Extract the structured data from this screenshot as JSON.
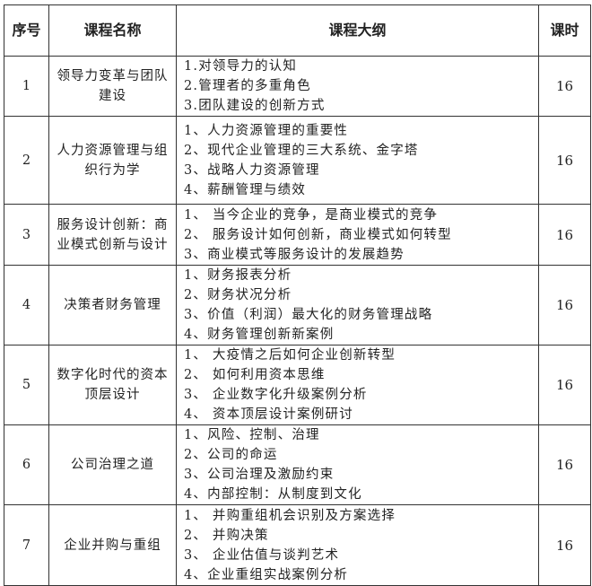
{
  "headers": [
    "序号",
    "课程名称",
    "课程大纲",
    "课时"
  ],
  "rows": [
    {
      "no": "1",
      "name": "领导力变革与团队建设",
      "outline": [
        "1.对领导力的认知",
        "2.管理者的多重角色",
        "3.团队建设的创新方式"
      ],
      "hours": "16"
    },
    {
      "no": "2",
      "name": "人力资源管理与组织行为学",
      "outline": [
        "1、人力资源管理的重要性",
        "2、现代企业管理的三大系统、金字塔",
        "3、战略人力资源管理",
        "4、薪酬管理与绩效"
      ],
      "hours": "16"
    },
    {
      "no": "3",
      "name": "服务设计创新：商业模式创新与设计",
      "outline": [
        "1、 当今企业的竞争，是商业模式的竞争",
        "2、 服务设计如何创新，商业模式如何转型",
        "3、商业模式等服务设计的发展趋势"
      ],
      "hours": "16"
    },
    {
      "no": "4",
      "name": "决策者财务管理",
      "outline": [
        "1、财务报表分析",
        "2、财务状况分析",
        "3、价值（利润）最大化的财务管理战略",
        "4、财务管理创新新案例"
      ],
      "hours": "16"
    },
    {
      "no": "5",
      "name": "数字化时代的资本顶层设计",
      "outline": [
        "1、 大疫情之后如何企业创新转型",
        "2、 如何利用资本思维",
        "3、 企业数字化升级案例分析",
        "4、 资本顶层设计案例研讨"
      ],
      "hours": "16"
    },
    {
      "no": "6",
      "name": "公司治理之道",
      "outline": [
        "1、风险、控制、治理",
        "2、公司的命运",
        "3、公司治理及激励约束",
        "4、内部控制：从制度到文化"
      ],
      "hours": "16"
    },
    {
      "no": "7",
      "name": "企业并购与重组",
      "outline": [
        "1、 并购重组机会识别及方案选择",
        "2、 并购决策",
        "3、 企业估值与谈判艺术",
        "4、企业重组实战案例分析"
      ],
      "hours": "16"
    }
  ]
}
